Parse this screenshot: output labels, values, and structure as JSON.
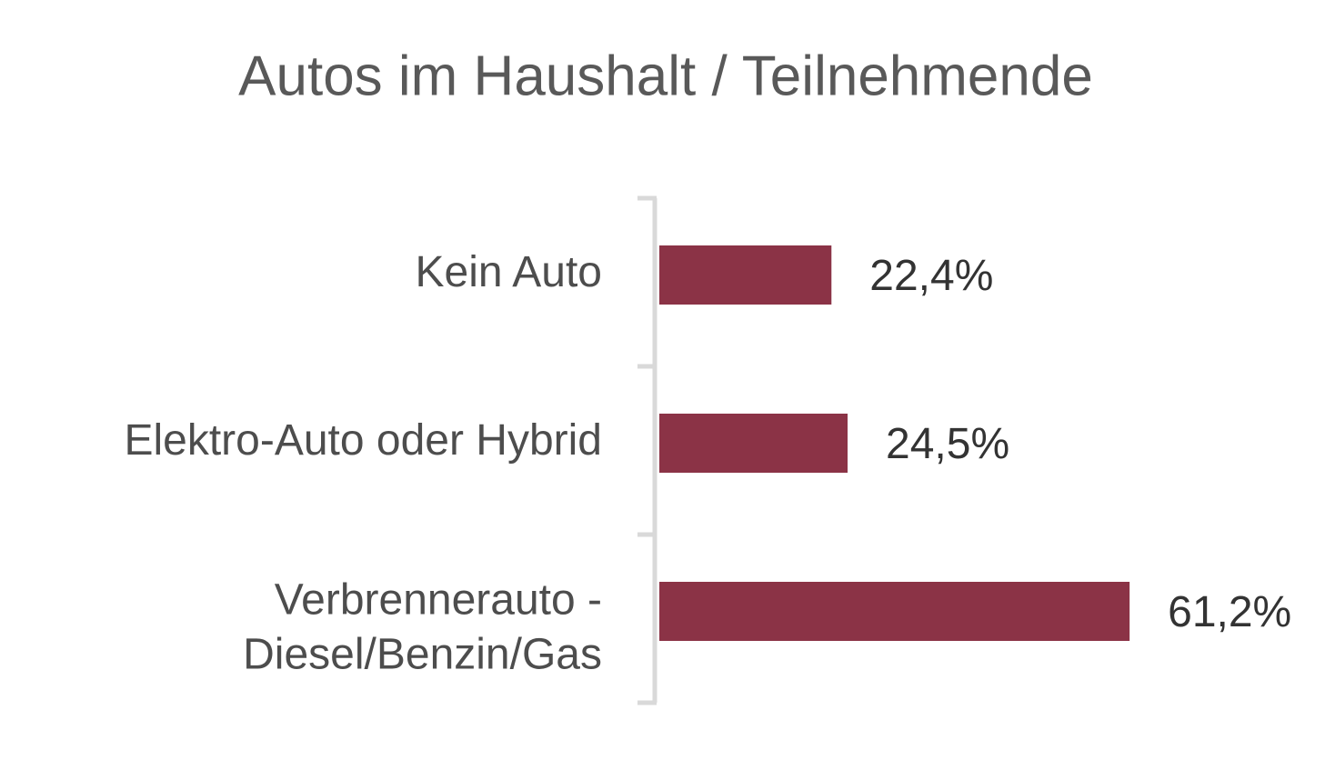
{
  "chart_data": {
    "type": "bar",
    "orientation": "horizontal",
    "title": "Autos im Haushalt / Teilnehmende",
    "categories": [
      "Kein Auto",
      "Elektro-Auto oder Hybrid",
      "Verbrennerauto -\nDiesel/Benzin/Gas"
    ],
    "values": [
      22.4,
      24.5,
      61.2
    ],
    "value_labels": [
      "22,4%",
      "24,5%",
      "61,2%"
    ],
    "color": "#8b3346"
  }
}
